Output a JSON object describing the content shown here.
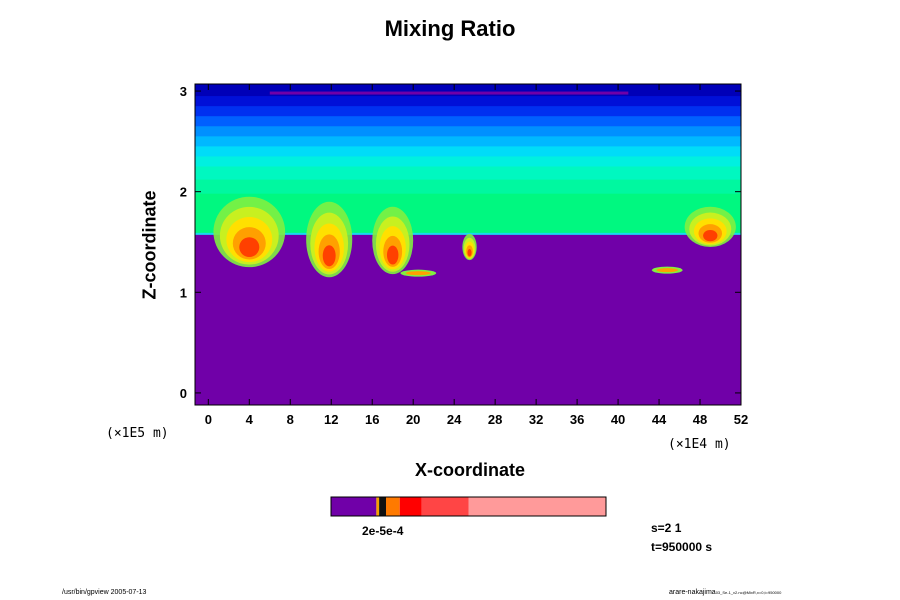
{
  "title": "Mixing Ratio",
  "xlabel": "X-coordinate",
  "ylabel": "Z-coordinate",
  "x_unit": "(×1E4 m)",
  "y_unit": "(×1E5 m)",
  "info": {
    "s": "s=2 1",
    "t": "t=950000 s"
  },
  "footer": {
    "left": "/usr/bin/gpview 2005-07-13",
    "right": "arare-nakajima",
    "right_small": "03_Se-1_v2.nc@MixR,x=0,t=950000"
  },
  "colorbar_label": "2e-5e-4",
  "colors": {
    "background_fill": "#7000a8",
    "colorbar": [
      "#7000a8",
      "#f4a000",
      "#111111",
      "#ff7a00",
      "#ff0000",
      "#ff4545",
      "#ff9a9a"
    ]
  },
  "chart_data": {
    "type": "heatmap",
    "title": "Mixing Ratio",
    "xlabel": "X-coordinate",
    "ylabel": "Z-coordinate",
    "xlim": [
      -1.3,
      52
    ],
    "ylim": [
      -0.12,
      3.07
    ],
    "xticks": [
      0,
      4,
      8,
      12,
      16,
      20,
      24,
      28,
      32,
      36,
      40,
      44,
      48,
      52
    ],
    "yticks": [
      0,
      1,
      2,
      3
    ],
    "bands": [
      {
        "z_from": 2.95,
        "z_to": 3.07,
        "color": "#0000b8"
      },
      {
        "z_from": 2.85,
        "z_to": 2.95,
        "color": "#0010d8"
      },
      {
        "z_from": 2.75,
        "z_to": 2.85,
        "color": "#0030f0"
      },
      {
        "z_from": 2.65,
        "z_to": 2.75,
        "color": "#0060ff"
      },
      {
        "z_from": 2.55,
        "z_to": 2.65,
        "color": "#0090ff"
      },
      {
        "z_from": 2.45,
        "z_to": 2.55,
        "color": "#00b8ff"
      },
      {
        "z_from": 2.35,
        "z_to": 2.45,
        "color": "#00dcf8"
      },
      {
        "z_from": 2.25,
        "z_to": 2.35,
        "color": "#00f0e0"
      },
      {
        "z_from": 2.12,
        "z_to": 2.25,
        "color": "#00f8c0"
      },
      {
        "z_from": 1.98,
        "z_to": 2.12,
        "color": "#00f8a0"
      },
      {
        "z_from": 1.58,
        "z_to": 1.98,
        "color": "#00f880"
      }
    ],
    "boundary_z": 1.58,
    "top_strip": {
      "x": [
        6,
        41
      ],
      "z": 2.98,
      "color": "#7000a8"
    },
    "plumes": [
      {
        "x": 4.0,
        "z_top": 1.95,
        "z_bottom": 1.25,
        "width": 7.0
      },
      {
        "x": 11.8,
        "z_top": 1.9,
        "z_bottom": 1.15,
        "width": 4.5
      },
      {
        "x": 18.0,
        "z_top": 1.85,
        "z_bottom": 1.18,
        "width": 4.0
      },
      {
        "x": 25.5,
        "z_top": 1.58,
        "z_bottom": 1.32,
        "width": 1.4
      },
      {
        "x": 49.0,
        "z_top": 1.85,
        "z_bottom": 1.45,
        "width": 5.0
      }
    ],
    "blobs": [
      {
        "x": 20.5,
        "z": 1.19,
        "width": 3.5
      },
      {
        "x": 44.8,
        "z": 1.22,
        "width": 3.0
      }
    ]
  }
}
